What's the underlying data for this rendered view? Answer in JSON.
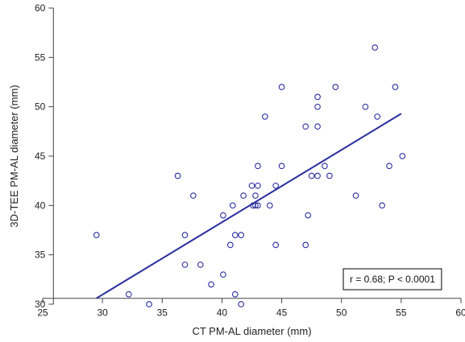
{
  "chart_data": {
    "type": "scatter",
    "title": "",
    "xlabel": "CT PM-AL diameter (mm)",
    "ylabel": "3D-TEE PM-AL diameter (mm)",
    "xlim": [
      25,
      60
    ],
    "ylim": [
      30,
      60
    ],
    "x_ticks": [
      "25",
      "30",
      "35",
      "40",
      "45",
      "50",
      "55",
      "60"
    ],
    "y_ticks": [
      "30",
      "35",
      "40",
      "45",
      "50",
      "55",
      "60"
    ],
    "grid": false,
    "legend": "none",
    "annotation": "r = 0.68; P < 0.0001",
    "series": [
      {
        "marker": "open-circle",
        "color": "#2b2f9e",
        "points": [
          [
            29.5,
            37
          ],
          [
            32.2,
            31
          ],
          [
            33.9,
            30
          ],
          [
            36.3,
            43
          ],
          [
            36.9,
            37
          ],
          [
            36.9,
            34
          ],
          [
            37.6,
            41
          ],
          [
            38.2,
            34
          ],
          [
            39.1,
            32
          ],
          [
            40.1,
            39
          ],
          [
            40.1,
            33
          ],
          [
            40.7,
            36
          ],
          [
            40.9,
            40
          ],
          [
            41.1,
            37
          ],
          [
            41.1,
            31
          ],
          [
            41.6,
            37
          ],
          [
            41.6,
            30
          ],
          [
            41.8,
            41
          ],
          [
            42.5,
            42
          ],
          [
            42.6,
            40
          ],
          [
            42.8,
            40
          ],
          [
            42.8,
            41
          ],
          [
            43.0,
            44
          ],
          [
            43.0,
            42
          ],
          [
            43.0,
            40
          ],
          [
            43.6,
            49
          ],
          [
            44.0,
            40
          ],
          [
            44.5,
            42
          ],
          [
            44.5,
            36
          ],
          [
            45.0,
            52
          ],
          [
            45.0,
            44
          ],
          [
            47.0,
            48
          ],
          [
            47.0,
            36
          ],
          [
            47.2,
            39
          ],
          [
            47.5,
            43
          ],
          [
            48.0,
            51
          ],
          [
            48.0,
            50
          ],
          [
            48.0,
            48
          ],
          [
            48.0,
            43
          ],
          [
            48.6,
            44
          ],
          [
            49.0,
            43
          ],
          [
            49.5,
            52
          ],
          [
            51.2,
            41
          ],
          [
            52.0,
            50
          ],
          [
            52.8,
            56
          ],
          [
            53.0,
            49
          ],
          [
            53.4,
            40
          ],
          [
            54.0,
            44
          ],
          [
            54.5,
            52
          ],
          [
            55.1,
            45
          ]
        ]
      }
    ],
    "regression_line": {
      "x": [
        29.5,
        55.0
      ],
      "y": [
        30.6,
        49.3
      ],
      "color": "#2b2f9e"
    }
  }
}
